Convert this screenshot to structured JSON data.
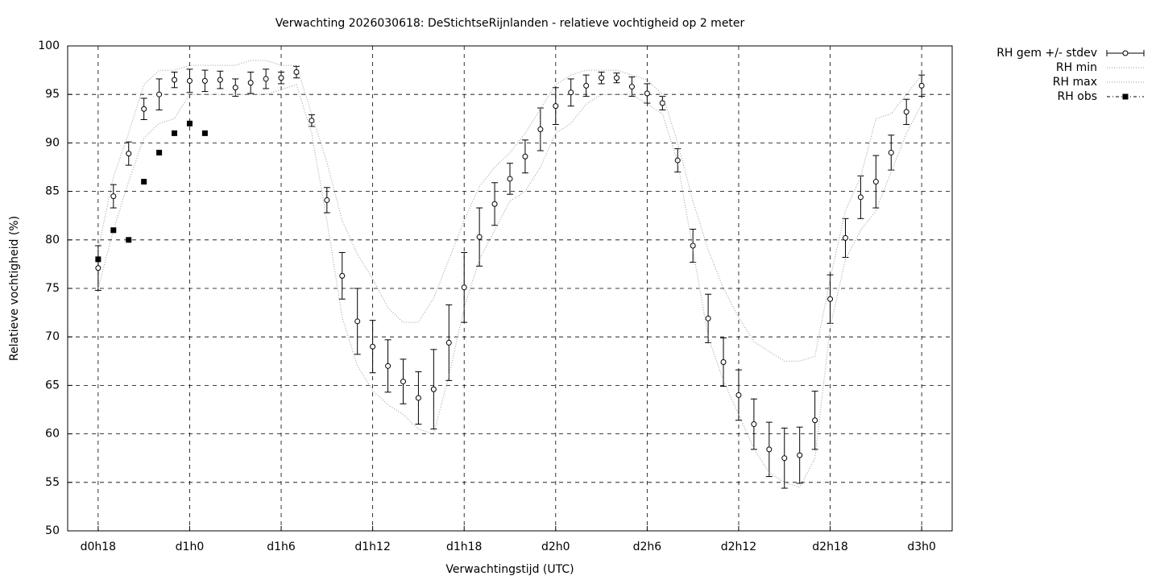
{
  "chart_data": {
    "type": "errorbar",
    "title": "Verwachting 2026030618: DeStichtseRijnlanden - relatieve vochtigheid op 2 meter",
    "x_label": "Verwachtingstijd (UTC)",
    "y_label": "Relatieve vochtigheid (%)",
    "x": [
      18,
      19,
      20,
      21,
      22,
      23,
      24,
      25,
      26,
      27,
      28,
      29,
      30,
      31,
      32,
      33,
      34,
      35,
      36,
      37,
      38,
      39,
      40,
      41,
      42,
      43,
      44,
      45,
      46,
      47,
      48,
      49,
      50,
      51,
      52,
      53,
      54,
      55,
      56,
      57,
      58,
      59,
      60,
      61,
      62,
      63,
      64,
      65,
      66,
      67,
      68,
      69,
      70,
      71,
      72
    ],
    "xlim": [
      16,
      74
    ],
    "xticks": [
      {
        "value": 18,
        "label": "d0h18"
      },
      {
        "value": 24,
        "label": "d1h0"
      },
      {
        "value": 30,
        "label": "d1h6"
      },
      {
        "value": 36,
        "label": "d1h12"
      },
      {
        "value": 42,
        "label": "d1h18"
      },
      {
        "value": 48,
        "label": "d2h0"
      },
      {
        "value": 54,
        "label": "d2h6"
      },
      {
        "value": 60,
        "label": "d2h12"
      },
      {
        "value": 66,
        "label": "d2h18"
      },
      {
        "value": 72,
        "label": "d3h0"
      }
    ],
    "ylim": [
      50,
      100
    ],
    "yticks": [
      50,
      55,
      60,
      65,
      70,
      75,
      80,
      85,
      90,
      95,
      100
    ],
    "grid": true,
    "legend": "outside-top-right",
    "series": [
      {
        "name": "RH gem +/- stdev",
        "style": "errorbar",
        "color": "#000000",
        "values": [
          77.1,
          84.5,
          88.9,
          93.5,
          95.0,
          96.5,
          96.4,
          96.4,
          96.5,
          95.7,
          96.2,
          96.6,
          96.7,
          97.3,
          92.3,
          84.1,
          76.3,
          71.6,
          69.0,
          67.0,
          65.4,
          63.7,
          64.6,
          69.4,
          75.1,
          80.3,
          83.7,
          86.3,
          88.6,
          91.4,
          93.8,
          95.2,
          95.9,
          96.7,
          96.7,
          95.8,
          95.1,
          94.1,
          88.2,
          79.4,
          71.9,
          67.4,
          64.0,
          61.0,
          58.4,
          57.5,
          57.8,
          61.4,
          73.9,
          80.2,
          84.4,
          86.0,
          89.0,
          93.2,
          95.9
        ],
        "errors": [
          2.3,
          1.2,
          1.2,
          1.1,
          1.6,
          0.8,
          1.2,
          1.1,
          0.9,
          0.9,
          1.1,
          1.0,
          0.6,
          0.6,
          0.6,
          1.3,
          2.4,
          3.4,
          2.7,
          2.7,
          2.3,
          2.7,
          4.1,
          3.9,
          3.6,
          3.0,
          2.2,
          1.6,
          1.7,
          2.2,
          1.9,
          1.4,
          1.1,
          0.6,
          0.5,
          1.0,
          1.0,
          0.7,
          1.2,
          1.7,
          2.5,
          2.5,
          2.6,
          2.6,
          2.8,
          3.1,
          2.9,
          3.0,
          2.5,
          2.0,
          2.2,
          2.7,
          1.8,
          1.3,
          1.1
        ]
      },
      {
        "name": "RH min",
        "style": "dotted",
        "color": "#999999",
        "values": [
          75,
          81,
          86,
          90.5,
          92,
          92.5,
          95,
          95,
          95,
          95,
          95,
          95,
          95.5,
          96,
          91,
          82,
          72,
          67,
          64.5,
          63,
          62,
          60.5,
          60,
          66,
          73,
          78,
          81,
          84,
          85,
          87.5,
          91,
          92,
          94,
          95,
          95,
          95,
          94,
          93,
          88,
          79,
          70,
          65.5,
          62,
          58.5,
          56,
          55,
          54.5,
          57.5,
          71,
          78,
          81,
          83,
          87,
          91,
          94
        ]
      },
      {
        "name": "RH max",
        "style": "dotted",
        "color": "#999999",
        "values": [
          79,
          86.5,
          91,
          96,
          97.5,
          97.5,
          98,
          98,
          98,
          98,
          98.5,
          98.5,
          98,
          98,
          93,
          88,
          82,
          78.5,
          76,
          73,
          71.5,
          71.5,
          74,
          78,
          82,
          85.5,
          87.5,
          89,
          91,
          93.5,
          96,
          97,
          97.5,
          97.5,
          97.5,
          97,
          96.5,
          95,
          90,
          84,
          79,
          75,
          72,
          69.5,
          68.5,
          67.5,
          67.5,
          68,
          76,
          83,
          86.5,
          92.5,
          93,
          95,
          97
        ]
      },
      {
        "name": "RH obs",
        "style": "points",
        "color": "#000000",
        "values": [
          78,
          81,
          80,
          86,
          89,
          91,
          92,
          91,
          null,
          null,
          null,
          null,
          null,
          null,
          null,
          null,
          null,
          null,
          null,
          null,
          null,
          null,
          null,
          null,
          null,
          null,
          null,
          null,
          null,
          null,
          null,
          null,
          null,
          null,
          null,
          null,
          null,
          null,
          null,
          null,
          null,
          null,
          null,
          null,
          null,
          null,
          null,
          null,
          null,
          null,
          null,
          null,
          null,
          null,
          null
        ]
      }
    ]
  }
}
